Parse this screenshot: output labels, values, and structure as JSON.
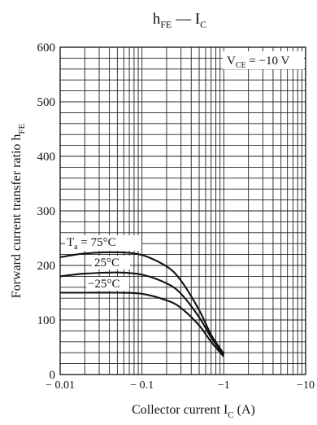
{
  "chart_data": {
    "type": "line",
    "title": {
      "main": "h",
      "sub": "FE",
      "sep": " — ",
      "main2": "I",
      "sub2": "C"
    },
    "condition": {
      "main": "V",
      "sub": "CE",
      "rest": " = −10 V"
    },
    "xlabel": {
      "text": "Collector current  I",
      "sub": "C",
      "unit": "  (A)"
    },
    "ylabel": {
      "text": "Forward current transfer ratio  h",
      "sub": "FE"
    },
    "x_scale": "log",
    "xlim": [
      0.01,
      10
    ],
    "ylim": [
      0,
      600
    ],
    "grid": true,
    "x_ticks": [
      {
        "value": 0.01,
        "label": "− 0.01"
      },
      {
        "value": 0.1,
        "label": "− 0.1"
      },
      {
        "value": 1,
        "label": "−1"
      },
      {
        "value": 10,
        "label": "−10"
      }
    ],
    "y_ticks": [
      {
        "value": 0,
        "label": "0"
      },
      {
        "value": 100,
        "label": "100"
      },
      {
        "value": 200,
        "label": "200"
      },
      {
        "value": 300,
        "label": "300"
      },
      {
        "value": 400,
        "label": "400"
      },
      {
        "value": 500,
        "label": "500"
      },
      {
        "value": 600,
        "label": "600"
      }
    ],
    "series": [
      {
        "name": "T_a = 75°C",
        "label": {
          "main": "T",
          "sub": "a",
          "rest": " = 75°C"
        },
        "points": [
          [
            0.01,
            215
          ],
          [
            0.02,
            222
          ],
          [
            0.05,
            224
          ],
          [
            0.1,
            219
          ],
          [
            0.2,
            198
          ],
          [
            0.3,
            172
          ],
          [
            0.5,
            118
          ],
          [
            0.7,
            73
          ],
          [
            1.0,
            38
          ]
        ]
      },
      {
        "name": "25°C",
        "label": {
          "main": "",
          "sub": "",
          "rest": "25°C"
        },
        "points": [
          [
            0.01,
            180
          ],
          [
            0.02,
            185
          ],
          [
            0.05,
            187
          ],
          [
            0.1,
            183
          ],
          [
            0.2,
            167
          ],
          [
            0.3,
            148
          ],
          [
            0.5,
            105
          ],
          [
            0.7,
            68
          ],
          [
            1.0,
            36
          ]
        ]
      },
      {
        "name": "−25°C",
        "label": {
          "main": "",
          "sub": "",
          "rest": "−25°C"
        },
        "points": [
          [
            0.01,
            150
          ],
          [
            0.02,
            150
          ],
          [
            0.05,
            150
          ],
          [
            0.1,
            148
          ],
          [
            0.2,
            136
          ],
          [
            0.3,
            122
          ],
          [
            0.5,
            90
          ],
          [
            0.7,
            60
          ],
          [
            1.0,
            33
          ]
        ]
      }
    ]
  }
}
